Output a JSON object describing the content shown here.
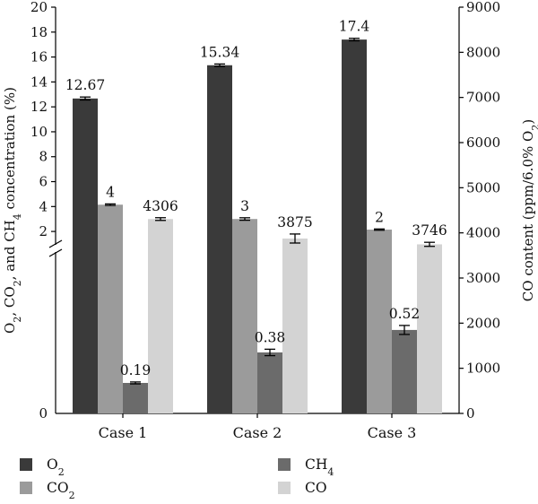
{
  "chart_data": {
    "type": "bar",
    "categories": [
      "Case 1",
      "Case 2",
      "Case 3"
    ],
    "series": [
      {
        "name": "O2",
        "legend_main": "O",
        "legend_sub": "2",
        "axis": "left",
        "color": "#3a3a3a",
        "values": [
          12.67,
          15.34,
          17.4
        ],
        "errors": [
          0.12,
          0.1,
          0.1
        ],
        "labels": [
          "12.67",
          "15.34",
          "17.4"
        ]
      },
      {
        "name": "CO2",
        "legend_main": "CO",
        "legend_sub": "2",
        "axis": "left",
        "color": "#9b9b9b",
        "values": [
          4.15,
          3.0,
          2.15
        ],
        "errors": [
          0.06,
          0.1,
          0.05
        ],
        "labels": [
          "4",
          "3",
          "2"
        ]
      },
      {
        "name": "CH4",
        "legend_main": "CH",
        "legend_sub": "4",
        "axis": "left",
        "color": "#6b6b6b",
        "values": [
          0.19,
          0.38,
          0.52
        ],
        "errors": [
          0.006,
          0.02,
          0.028
        ],
        "labels": [
          "0.19",
          "0.38",
          "0.52"
        ]
      },
      {
        "name": "CO",
        "legend_main": "CO",
        "legend_sub": "",
        "axis": "right",
        "color": "#d3d3d3",
        "values": [
          4306,
          3875,
          3746
        ],
        "errors": [
          30,
          100,
          45
        ],
        "labels": [
          "4306",
          "3875",
          "3746"
        ]
      }
    ],
    "left_axis": {
      "title_parts": [
        {
          "t": "O",
          "sub": false
        },
        {
          "t": "2",
          "sub": true
        },
        {
          "t": ", CO",
          "sub": false
        },
        {
          "t": "2",
          "sub": true
        },
        {
          "t": ", and CH",
          "sub": false
        },
        {
          "t": "4",
          "sub": true
        },
        {
          "t": " concentration (%)",
          "sub": false
        }
      ],
      "upper_ticks": [
        2,
        4,
        6,
        8,
        10,
        12,
        14,
        16,
        18,
        20
      ],
      "upper_range": [
        1,
        20
      ],
      "lower_range": [
        0,
        1
      ],
      "zero_label": "0",
      "break_at": 1
    },
    "right_axis": {
      "title_parts": [
        {
          "t": "CO content (ppm/6.0% O",
          "sub": false
        },
        {
          "t": "2",
          "sub": true
        },
        {
          "t": ")",
          "sub": false
        }
      ],
      "range": [
        0,
        9000
      ],
      "ticks": [
        0,
        1000,
        2000,
        3000,
        4000,
        5000,
        6000,
        7000,
        8000,
        9000
      ]
    },
    "legend_position": "bottom"
  }
}
